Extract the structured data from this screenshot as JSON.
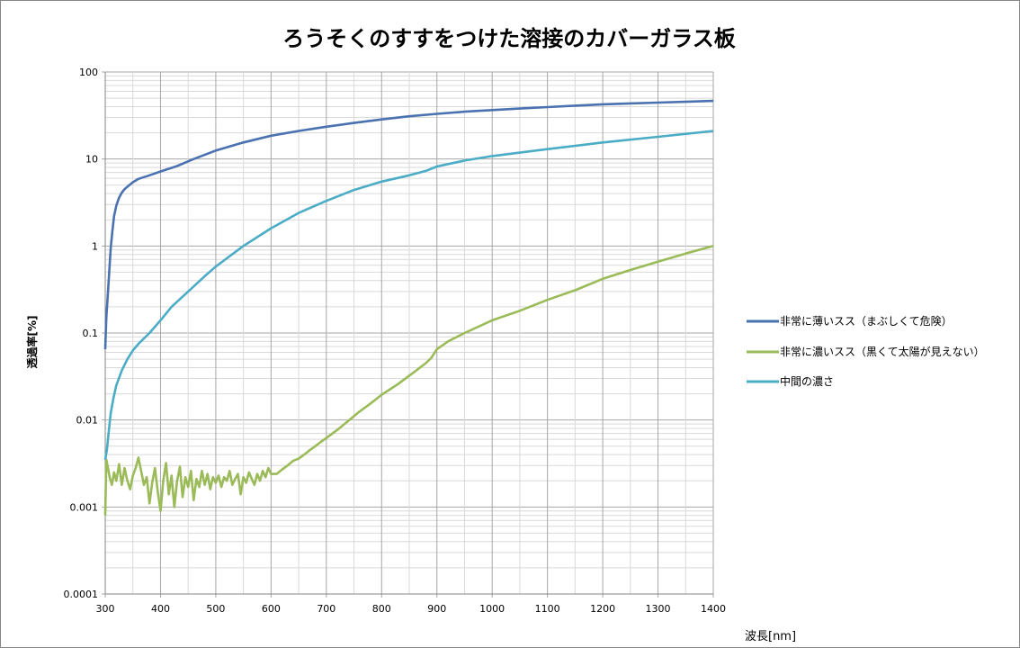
{
  "chart_data": {
    "type": "line",
    "title": "ろうそくのすすをつけた溶接のカバーガラス板",
    "xlabel": "波長[nm]",
    "ylabel": "透過率[%]",
    "xlim": [
      300,
      1400
    ],
    "ylim": [
      0.0001,
      100
    ],
    "yscale": "log",
    "x_ticks": [
      "300",
      "400",
      "500",
      "600",
      "700",
      "800",
      "900",
      "1000",
      "1100",
      "1200",
      "1300",
      "1400"
    ],
    "y_ticks": [
      "0.0001",
      "0.001",
      "0.01",
      "0.1",
      "1",
      "10",
      "100"
    ],
    "grid": true,
    "legend_position": "right",
    "series": [
      {
        "name": "非常に薄いスス（まぶしくて危険）",
        "color": "#4a72b0",
        "x": [
          300,
          302,
          305,
          308,
          310,
          313,
          316,
          320,
          325,
          330,
          335,
          340,
          350,
          360,
          380,
          400,
          430,
          460,
          500,
          550,
          600,
          650,
          700,
          750,
          800,
          850,
          900,
          950,
          1000,
          1050,
          1100,
          1150,
          1200,
          1250,
          1300,
          1350,
          1400
        ],
        "y": [
          0.065,
          0.15,
          0.3,
          0.6,
          0.95,
          1.5,
          2.2,
          2.9,
          3.6,
          4.1,
          4.5,
          4.8,
          5.4,
          5.9,
          6.5,
          7.2,
          8.3,
          10,
          12.5,
          15.5,
          18.5,
          21,
          23.5,
          26,
          28.5,
          31,
          33,
          35,
          36.5,
          38,
          39.5,
          41,
          42.5,
          43.5,
          44.5,
          45.5,
          46.5
        ]
      },
      {
        "name": "非常に濃いスス（黒くて太陽が見えない）",
        "color": "#9bbb59",
        "x": [
          300,
          302,
          305,
          308,
          312,
          316,
          320,
          325,
          330,
          335,
          340,
          345,
          350,
          355,
          360,
          365,
          370,
          375,
          380,
          385,
          390,
          395,
          400,
          405,
          410,
          415,
          420,
          425,
          430,
          435,
          440,
          445,
          450,
          455,
          460,
          465,
          470,
          475,
          480,
          485,
          490,
          495,
          500,
          505,
          510,
          515,
          520,
          525,
          530,
          535,
          540,
          545,
          550,
          555,
          560,
          565,
          570,
          575,
          580,
          585,
          590,
          595,
          600,
          610,
          620,
          630,
          640,
          650,
          660,
          670,
          680,
          690,
          700,
          720,
          740,
          760,
          780,
          800,
          830,
          860,
          880,
          890,
          900,
          920,
          950,
          1000,
          1050,
          1100,
          1150,
          1200,
          1250,
          1300,
          1350,
          1400
        ],
        "y": [
          0.0008,
          0.0035,
          0.0028,
          0.0022,
          0.0018,
          0.0025,
          0.002,
          0.0031,
          0.0018,
          0.0028,
          0.002,
          0.0016,
          0.0023,
          0.0028,
          0.0037,
          0.0026,
          0.0018,
          0.0022,
          0.0011,
          0.0019,
          0.0028,
          0.0015,
          0.0009,
          0.002,
          0.0032,
          0.0014,
          0.0023,
          0.001,
          0.002,
          0.0029,
          0.0013,
          0.0022,
          0.0017,
          0.0026,
          0.0012,
          0.0021,
          0.0017,
          0.0026,
          0.0018,
          0.0024,
          0.0016,
          0.0022,
          0.0019,
          0.0023,
          0.0017,
          0.0022,
          0.002,
          0.0026,
          0.0018,
          0.0021,
          0.0024,
          0.0014,
          0.0022,
          0.0019,
          0.0025,
          0.0021,
          0.0018,
          0.0024,
          0.002,
          0.0026,
          0.0022,
          0.0028,
          0.0024,
          0.0024,
          0.0027,
          0.003,
          0.0034,
          0.0036,
          0.004,
          0.0045,
          0.005,
          0.0056,
          0.0062,
          0.0077,
          0.0098,
          0.0125,
          0.0155,
          0.0195,
          0.026,
          0.036,
          0.045,
          0.052,
          0.065,
          0.08,
          0.1,
          0.14,
          0.18,
          0.24,
          0.31,
          0.42,
          0.53,
          0.66,
          0.82,
          1.0
        ]
      },
      {
        "name": "中間の濃さ",
        "color": "#4bacc6",
        "x": [
          300,
          303,
          306,
          310,
          315,
          320,
          330,
          340,
          350,
          360,
          380,
          400,
          420,
          450,
          480,
          500,
          550,
          600,
          650,
          700,
          750,
          800,
          850,
          880,
          900,
          950,
          1000,
          1100,
          1200,
          1300,
          1400
        ],
        "y": [
          0.0035,
          0.0045,
          0.007,
          0.012,
          0.018,
          0.025,
          0.037,
          0.05,
          0.063,
          0.075,
          0.1,
          0.14,
          0.2,
          0.3,
          0.45,
          0.58,
          1.0,
          1.6,
          2.4,
          3.3,
          4.4,
          5.5,
          6.5,
          7.3,
          8.2,
          9.6,
          10.8,
          13,
          15.5,
          18,
          21
        ]
      }
    ]
  }
}
